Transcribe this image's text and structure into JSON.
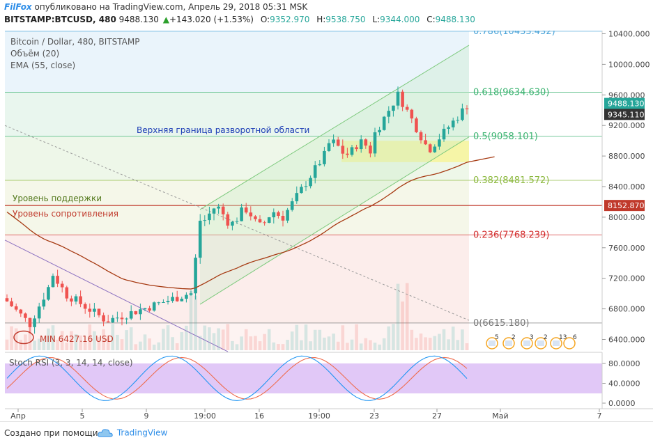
{
  "header": {
    "brand": "FilFox",
    "published": "опубликовано на TradingView.com, Апрель 29, 2018 05:31 MSK",
    "symbol": "BITSTAMP:BTCUSD, 480",
    "last": "9488.130",
    "change": "+143.020 (+1.53%)",
    "o_label": "O:",
    "o": "9352.970",
    "h_label": "H:",
    "h": "9538.750",
    "l_label": "L:",
    "l": "9344.000",
    "c_label": "C:",
    "c": "9488.130"
  },
  "legend": {
    "title": "Bitcoin / Dollar, 480, BITSTAMP",
    "volume": "Объём (20)",
    "ema": "EMA (55, close)"
  },
  "annotations": {
    "reversal": "Верхняя граница разворотной области",
    "support": "Уровень поддержки",
    "resistance": "Уровень сопротивления",
    "min": "MIN 6427.16 USD"
  },
  "stoch_label": "Stoch RSI (3, 3, 14, 14, close)",
  "footer": {
    "created": "Создано при помощи",
    "logo": "TradingView"
  },
  "colors": {
    "up": "#26a69a",
    "down": "#ef5350",
    "ema": "#a63a12",
    "fib_blue": "#4aa3d8",
    "fib_green": "#3cb371",
    "fib_lime": "#8bb83d",
    "fib_red": "#d32f2f",
    "support_red": "#c0392b",
    "stoch_k": "#2196f3",
    "stoch_d": "#ef6c4d",
    "stoch_bg": "#e1c8f7"
  },
  "chart_data": {
    "type": "candlestick",
    "y_ticks": [
      "10400.000",
      "10000.000",
      "9600.000",
      "9200.000",
      "8800.000",
      "8400.000",
      "8000.000",
      "7600.000",
      "7200.000",
      "6800.000",
      "6400.000"
    ],
    "x_ticks": [
      "Апр",
      "5",
      "9",
      "19:00",
      "16",
      "19:00",
      "23",
      "27",
      "Май",
      "7"
    ],
    "ylim": [
      6200,
      10500
    ],
    "price_labels": [
      {
        "text": "9488.130",
        "value": 9488.13,
        "color": "#26a69a"
      },
      {
        "text": "9345.110",
        "value": 9345.11,
        "color": "#333333"
      },
      {
        "text": "8152.870",
        "value": 8152.87,
        "color": "#c0392b"
      }
    ],
    "fib_levels": [
      {
        "label": "0.786(10433.432)",
        "value": 10433.432,
        "color": "#4aa3d8"
      },
      {
        "label": "0.618(9634.630)",
        "value": 9634.63,
        "color": "#3cb371"
      },
      {
        "label": "0.5(9058.101)",
        "value": 9058.101,
        "color": "#3cb371"
      },
      {
        "label": "0.382(8481.572)",
        "value": 8481.572,
        "color": "#8bb83d"
      },
      {
        "label": "0.236(7768.239)",
        "value": 7768.239,
        "color": "#d32f2f"
      },
      {
        "label": "0(6615.180)",
        "value": 6615.18,
        "color": "#777777"
      }
    ],
    "support_value": 8152.87,
    "reversal_zone": [
      8720,
      9000
    ],
    "min_value": 6427.16,
    "stoch_ticks": [
      "80.0000",
      "40.0000",
      "0.0000"
    ],
    "stoch_ylim": [
      -5,
      100
    ]
  }
}
